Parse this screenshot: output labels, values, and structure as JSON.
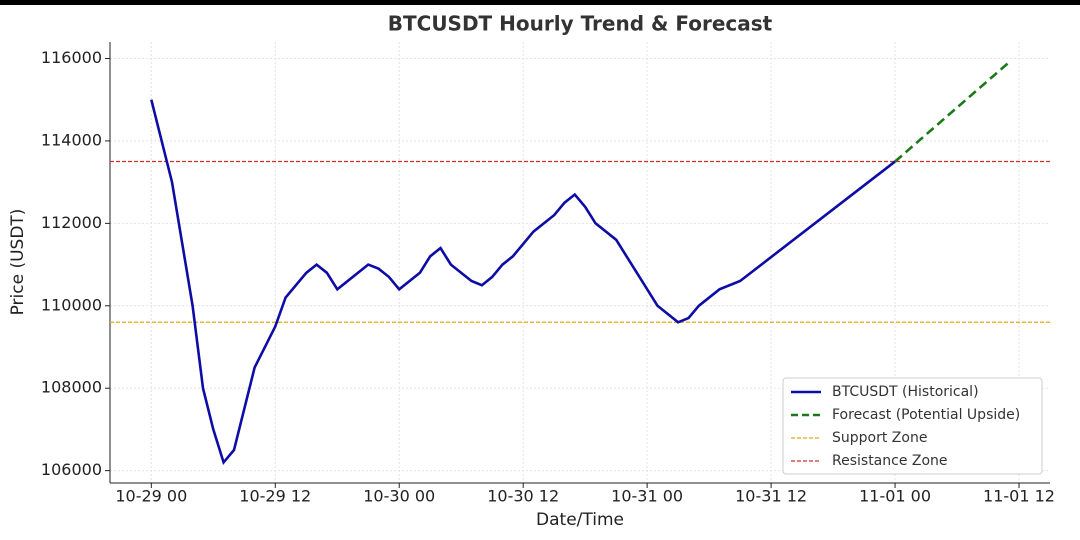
{
  "chart_data": {
    "type": "line",
    "title": "BTCUSDT Hourly Trend & Forecast",
    "x_label": "Date/Time",
    "y_label": "Price (USDT)",
    "xlim": [
      "10-28 20",
      "11-01 15"
    ],
    "xticks": [
      "10-29 00",
      "10-29 12",
      "10-30 00",
      "10-30 12",
      "10-31 00",
      "10-31 12",
      "11-01 00",
      "11-01 12"
    ],
    "ylim": [
      105700,
      116400
    ],
    "yticks": [
      106000,
      108000,
      110000,
      112000,
      114000,
      116000
    ],
    "grid": true,
    "legend": "lower right",
    "series": [
      {
        "name": "BTCUSDT (Historical)",
        "color": "#0d0da6",
        "style": "solid",
        "x": [
          "10-29 00",
          "10-29 02",
          "10-29 04",
          "10-29 05",
          "10-29 06",
          "10-29 07",
          "10-29 08",
          "10-29 10",
          "10-29 12",
          "10-29 13",
          "10-29 15",
          "10-29 16",
          "10-29 17",
          "10-29 18",
          "10-29 21",
          "10-29 22",
          "10-29 23",
          "10-30 00",
          "10-30 02",
          "10-30 03",
          "10-30 04",
          "10-30 05",
          "10-30 07",
          "10-30 08",
          "10-30 09",
          "10-30 10",
          "10-30 11",
          "10-30 13",
          "10-30 15",
          "10-30 16",
          "10-30 17",
          "10-30 18",
          "10-30 19",
          "10-30 21",
          "10-31 01",
          "10-31 03",
          "10-31 04",
          "10-31 05",
          "10-31 07",
          "10-31 09",
          "11-01 00"
        ],
        "values": [
          115000,
          113000,
          110000,
          108000,
          107000,
          106200,
          106500,
          108500,
          109500,
          110200,
          110800,
          111000,
          110800,
          110400,
          111000,
          110900,
          110700,
          110400,
          110800,
          111200,
          111400,
          111000,
          110600,
          110500,
          110700,
          111000,
          111200,
          111800,
          112200,
          112500,
          112700,
          112400,
          112000,
          111600,
          110000,
          109600,
          109700,
          110000,
          110400,
          110600,
          113500
        ]
      },
      {
        "name": "Forecast (Potential Upside)",
        "color": "#1a7a1a",
        "style": "dashed",
        "x": [
          "11-01 00",
          "11-01 11"
        ],
        "values": [
          113500,
          115900
        ]
      }
    ],
    "hlines": [
      {
        "name": "Support Zone",
        "value": 109600,
        "color": "#e0a91c"
      },
      {
        "name": "Resistance Zone",
        "value": 113500,
        "color": "#c8332b"
      }
    ]
  }
}
